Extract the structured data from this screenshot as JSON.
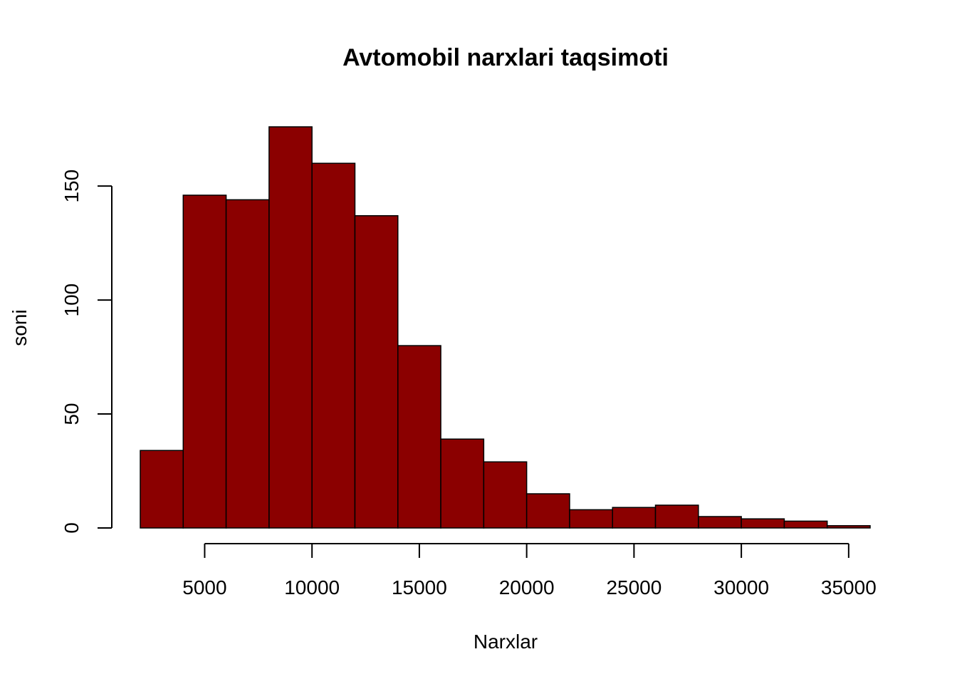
{
  "chart_data": {
    "type": "bar",
    "title": "Avtomobil narxlari taqsimoti",
    "xlabel": "Narxlar",
    "ylabel": "soni",
    "bar_color": "#8B0000",
    "border_color": "#000000",
    "grid": false,
    "bin_edges": [
      2000,
      4000,
      6000,
      8000,
      10000,
      12000,
      14000,
      16000,
      18000,
      20000,
      22000,
      24000,
      26000,
      28000,
      30000,
      32000,
      34000,
      36000
    ],
    "values": [
      34,
      146,
      144,
      176,
      160,
      137,
      80,
      39,
      29,
      15,
      8,
      9,
      10,
      5,
      4,
      3,
      1
    ],
    "xlim": [
      2000,
      36000
    ],
    "ylim": [
      0,
      176
    ],
    "x_ticks": [
      5000,
      10000,
      15000,
      20000,
      25000,
      30000,
      35000
    ],
    "x_tick_labels": [
      "5000",
      "10000",
      "15000",
      "20000",
      "25000",
      "30000",
      "35000"
    ],
    "y_ticks": [
      0,
      50,
      100,
      150
    ],
    "y_tick_labels": [
      "0",
      "50",
      "100",
      "150"
    ]
  }
}
